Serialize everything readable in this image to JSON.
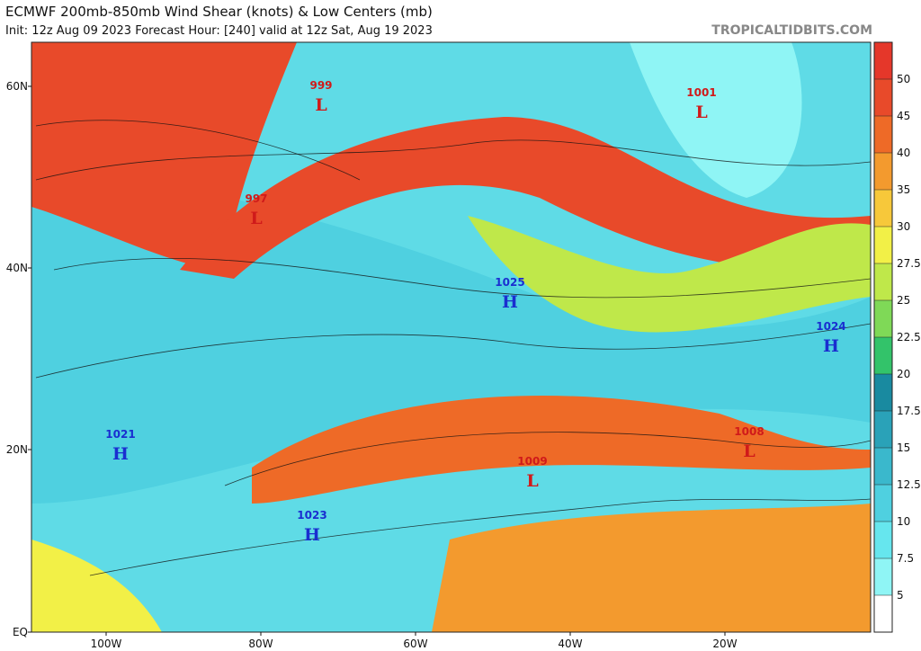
{
  "header": {
    "title": "ECMWF 200mb-850mb Wind Shear (knots) & Low Centers (mb)",
    "subtitle": "Init: 12z Aug 09 2023   Forecast Hour: [240]   valid at 12z Sat, Aug 19 2023",
    "credit": "TROPICALTIDBITS.COM"
  },
  "map": {
    "lat_labels": [
      "60N",
      "40N",
      "20N",
      "EQ"
    ],
    "lon_labels": [
      "100W",
      "80W",
      "60W",
      "40W",
      "20W"
    ],
    "centers": [
      {
        "kind": "L",
        "pressure": "999"
      },
      {
        "kind": "L",
        "pressure": "997"
      },
      {
        "kind": "L",
        "pressure": "1001"
      },
      {
        "kind": "H",
        "pressure": "1025"
      },
      {
        "kind": "H",
        "pressure": "1024"
      },
      {
        "kind": "H",
        "pressure": "1021"
      },
      {
        "kind": "L",
        "pressure": "1009"
      },
      {
        "kind": "L",
        "pressure": "1008"
      },
      {
        "kind": "H",
        "pressure": "1023"
      }
    ]
  },
  "colorbar": {
    "ticks": [
      5,
      7.5,
      10,
      12.5,
      15,
      17.5,
      20,
      22.5,
      25,
      27.5,
      30,
      35,
      40,
      45,
      50
    ],
    "colors": [
      "#ffffff",
      "#8ff5f5",
      "#66e6ee",
      "#4fd0e0",
      "#3ab8cc",
      "#2aa2b8",
      "#198aa0",
      "#33c36a",
      "#7fd957",
      "#bfe84a",
      "#f2f047",
      "#f7c83a",
      "#f39a2e",
      "#ee6a27",
      "#e84a2a",
      "#e5372a"
    ]
  }
}
